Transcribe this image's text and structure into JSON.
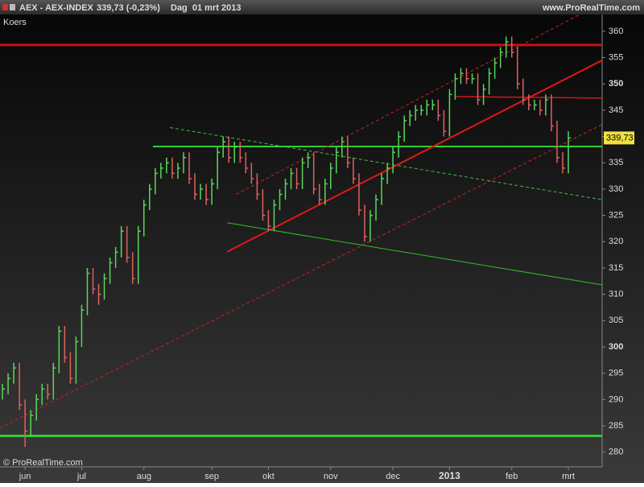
{
  "header": {
    "symbol": "AEX - AEX-INDEX",
    "quote": "339,73 (-0,23%)",
    "period": "Dag  01 mrt 2013",
    "site": "www.ProRealTime.com"
  },
  "chart_data": {
    "type": "ohlc",
    "title": "Koers",
    "footer": "© ProRealTime.com",
    "categories": [
      null,
      null,
      null,
      null,
      "jun",
      null,
      null,
      null,
      null,
      null,
      null,
      null,
      null,
      null,
      "jul",
      null,
      null,
      null,
      null,
      null,
      null,
      null,
      null,
      null,
      null,
      "aug",
      null,
      null,
      null,
      null,
      null,
      null,
      null,
      null,
      null,
      null,
      null,
      "sep",
      null,
      null,
      null,
      null,
      null,
      null,
      null,
      null,
      null,
      "okt",
      null,
      null,
      null,
      null,
      null,
      null,
      null,
      null,
      null,
      null,
      "nov",
      null,
      null,
      null,
      null,
      null,
      null,
      null,
      null,
      null,
      null,
      "dec",
      null,
      null,
      null,
      null,
      null,
      null,
      null,
      null,
      null,
      "2013",
      null,
      null,
      null,
      null,
      null,
      null,
      null,
      null,
      null,
      null,
      "feb",
      null,
      null,
      null,
      null,
      null,
      null,
      null,
      null,
      null,
      "mrt"
    ],
    "high": [
      293,
      295,
      297,
      297,
      290,
      288,
      291,
      293,
      293,
      297,
      304,
      304,
      299,
      302,
      308,
      315,
      315,
      312,
      314,
      317,
      319,
      323,
      323,
      318,
      323,
      328,
      331,
      334,
      335,
      336,
      336,
      335,
      337,
      337,
      333,
      331,
      331,
      332,
      338,
      340,
      340,
      339,
      339,
      337,
      335,
      333,
      330,
      326,
      328,
      330,
      332,
      334,
      334,
      336,
      337,
      337,
      331,
      332,
      335,
      338,
      340,
      340,
      336,
      333,
      327,
      326,
      329,
      333,
      335,
      338,
      341,
      344,
      345,
      346,
      346,
      347,
      347,
      347,
      345,
      349,
      352,
      353,
      353,
      352,
      352,
      350,
      353,
      355,
      357,
      359,
      359,
      357,
      351,
      348,
      347,
      347,
      348,
      348,
      343,
      337,
      341
    ],
    "low": [
      290,
      291,
      293,
      288,
      281,
      283,
      286,
      289,
      290,
      290,
      295,
      297,
      293,
      293,
      300,
      306,
      310,
      308,
      309,
      312,
      315,
      317,
      316,
      312,
      312,
      321,
      326,
      329,
      332,
      333,
      332,
      332,
      333,
      331,
      328,
      328,
      327,
      327,
      330,
      336,
      335,
      335,
      335,
      333,
      331,
      328,
      324,
      322,
      322,
      326,
      328,
      330,
      330,
      330,
      334,
      329,
      327,
      327,
      330,
      333,
      336,
      334,
      331,
      325,
      320,
      320,
      324,
      327,
      331,
      333,
      336,
      339,
      342,
      343,
      344,
      344,
      345,
      343,
      340,
      340,
      347,
      350,
      350,
      350,
      346,
      346,
      348,
      351,
      353,
      355,
      355,
      349,
      346,
      345,
      345,
      344,
      344,
      341,
      335,
      333,
      333
    ],
    "close": [
      292,
      294,
      296,
      289,
      284,
      287,
      290,
      292,
      291,
      296,
      303,
      298,
      294,
      301,
      307,
      314,
      311,
      310,
      313,
      316,
      318,
      322,
      317,
      313,
      322,
      327,
      330,
      333,
      334,
      335,
      333,
      334,
      336,
      332,
      329,
      330,
      328,
      331,
      337,
      339,
      336,
      338,
      336,
      334,
      332,
      329,
      325,
      323,
      327,
      329,
      331,
      333,
      331,
      335,
      336,
      330,
      328,
      331,
      334,
      337,
      339,
      335,
      332,
      326,
      321,
      325,
      328,
      332,
      334,
      337,
      340,
      343,
      344,
      345,
      345,
      346,
      346,
      344,
      341,
      348,
      351,
      352,
      351,
      351,
      347,
      349,
      352,
      354,
      356,
      358,
      356,
      350,
      347,
      346,
      346,
      345,
      347,
      342,
      336,
      334,
      339.73
    ],
    "up_color": "#5ad65a",
    "down_color": "#e06060",
    "last": {
      "value": 339.73,
      "label": "339,73"
    },
    "xlim": [
      -0.43,
      105.97
    ],
    "ylim": [
      277.2,
      363.2
    ],
    "yticks": [
      280,
      285,
      290,
      295,
      300,
      305,
      310,
      315,
      320,
      325,
      330,
      335,
      340,
      345,
      350,
      355,
      360
    ],
    "bold_yticks": [
      300,
      350
    ],
    "lines": [
      {
        "color": "#c81010",
        "width": 3,
        "dash": false,
        "x": [
          -0.43,
          105.97
        ],
        "y": [
          357.4,
          357.4
        ]
      },
      {
        "color": "#33cc33",
        "width": 2,
        "dash": false,
        "x": [
          26.6,
          105.97
        ],
        "y": [
          338.1,
          338.1
        ]
      },
      {
        "color": "#33cc33",
        "width": 3,
        "dash": false,
        "x": [
          -0.43,
          105.97
        ],
        "y": [
          283.1,
          283.1
        ]
      },
      {
        "color": "#d01818",
        "width": 1.5,
        "dash": false,
        "x": [
          80.2,
          105.97
        ],
        "y": [
          347.6,
          347.3
        ]
      },
      {
        "color": "#e01818",
        "width": 2,
        "dash": false,
        "x": [
          39.7,
          105.97
        ],
        "y": [
          318.1,
          354.5
        ]
      },
      {
        "color": "#d02020",
        "width": 1,
        "dash": true,
        "x": [
          -0.43,
          105.97
        ],
        "y": [
          284.6,
          342.3
        ]
      },
      {
        "color": "#d02020",
        "width": 1,
        "dash": true,
        "x": [
          41.3,
          102
        ],
        "y": [
          329,
          363.2
        ]
      },
      {
        "color": "#44bb44",
        "width": 1,
        "dash": true,
        "x": [
          29.6,
          105.97
        ],
        "y": [
          341.7,
          328
        ]
      },
      {
        "color": "#33bb33",
        "width": 1,
        "dash": false,
        "x": [
          39.7,
          105.97
        ],
        "y": [
          323.6,
          311.8
        ]
      }
    ]
  }
}
